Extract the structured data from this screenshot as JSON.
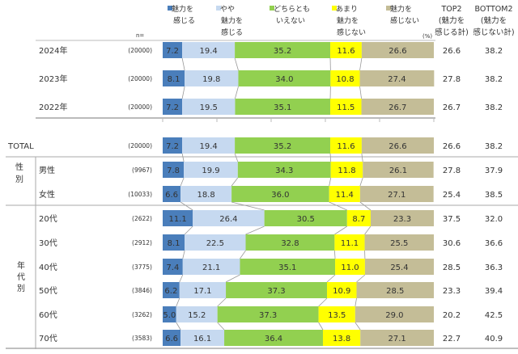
{
  "chart_data": {
    "type": "bar",
    "orientation": "horizontal-stacked-100",
    "unit_label": "(%)",
    "n_label": "n=",
    "legend": [
      {
        "lines": [
          "魅力を",
          "感じる"
        ],
        "color": "#4a7ebb"
      },
      {
        "lines": [
          "やや",
          "魅力を",
          "感じる"
        ],
        "color": "#c6d9f0"
      },
      {
        "lines": [
          "どちらとも",
          "いえない"
        ],
        "color": "#92d050"
      },
      {
        "lines": [
          "あまり",
          "魅力を",
          "感じない"
        ],
        "color": "#ffff00"
      },
      {
        "lines": [
          "魅力を",
          "感じない"
        ],
        "color": "#c4bd97"
      }
    ],
    "summary_headers": [
      {
        "lines": [
          "TOP2",
          "(魅力を",
          "感じる計)"
        ]
      },
      {
        "lines": [
          "BOTTOM2",
          "(魅力を",
          "感じない計)"
        ]
      }
    ],
    "groups": [
      {
        "label": "性別",
        "chars": [
          "性",
          "別"
        ]
      },
      {
        "label": "年代別",
        "chars": [
          "年",
          "代",
          "別"
        ]
      }
    ],
    "rows": [
      {
        "label": "2024年",
        "n": "(20000)",
        "values": [
          7.2,
          19.4,
          35.2,
          11.6,
          26.6
        ],
        "top2": "26.6",
        "bottom2": "38.2"
      },
      {
        "label": "2023年",
        "n": "(20000)",
        "values": [
          8.1,
          19.8,
          34.0,
          10.8,
          27.4
        ],
        "top2": "27.8",
        "bottom2": "38.2"
      },
      {
        "label": "2022年",
        "n": "(20000)",
        "values": [
          7.2,
          19.5,
          35.1,
          11.5,
          26.7
        ],
        "top2": "26.7",
        "bottom2": "38.2"
      },
      {
        "label": "TOTAL",
        "n": "(20000)",
        "values": [
          7.2,
          19.4,
          35.2,
          11.6,
          26.6
        ],
        "top2": "26.6",
        "bottom2": "38.2"
      },
      {
        "label": "男性",
        "n": "(9967)",
        "values": [
          7.8,
          19.9,
          34.3,
          11.8,
          26.1
        ],
        "top2": "27.8",
        "bottom2": "37.9"
      },
      {
        "label": "女性",
        "n": "(10033)",
        "values": [
          6.6,
          18.8,
          36.0,
          11.4,
          27.1
        ],
        "top2": "25.4",
        "bottom2": "38.5"
      },
      {
        "label": "20代",
        "n": "(2622)",
        "values": [
          11.1,
          26.4,
          30.5,
          8.7,
          23.3
        ],
        "top2": "37.5",
        "bottom2": "32.0"
      },
      {
        "label": "30代",
        "n": "(2912)",
        "values": [
          8.1,
          22.5,
          32.8,
          11.1,
          25.5
        ],
        "top2": "30.6",
        "bottom2": "36.6"
      },
      {
        "label": "40代",
        "n": "(3775)",
        "values": [
          7.4,
          21.1,
          35.1,
          11.0,
          25.4
        ],
        "top2": "28.5",
        "bottom2": "36.3"
      },
      {
        "label": "50代",
        "n": "(3846)",
        "values": [
          6.2,
          17.1,
          37.3,
          10.9,
          28.5
        ],
        "top2": "23.3",
        "bottom2": "39.4"
      },
      {
        "label": "60代",
        "n": "(3262)",
        "values": [
          5.0,
          15.2,
          37.3,
          13.5,
          29.0
        ],
        "top2": "20.2",
        "bottom2": "42.5"
      },
      {
        "label": "70代",
        "n": "(3583)",
        "values": [
          6.6,
          16.1,
          36.4,
          13.8,
          27.1
        ],
        "top2": "22.7",
        "bottom2": "40.9"
      }
    ],
    "xlim": [
      0,
      100
    ]
  }
}
